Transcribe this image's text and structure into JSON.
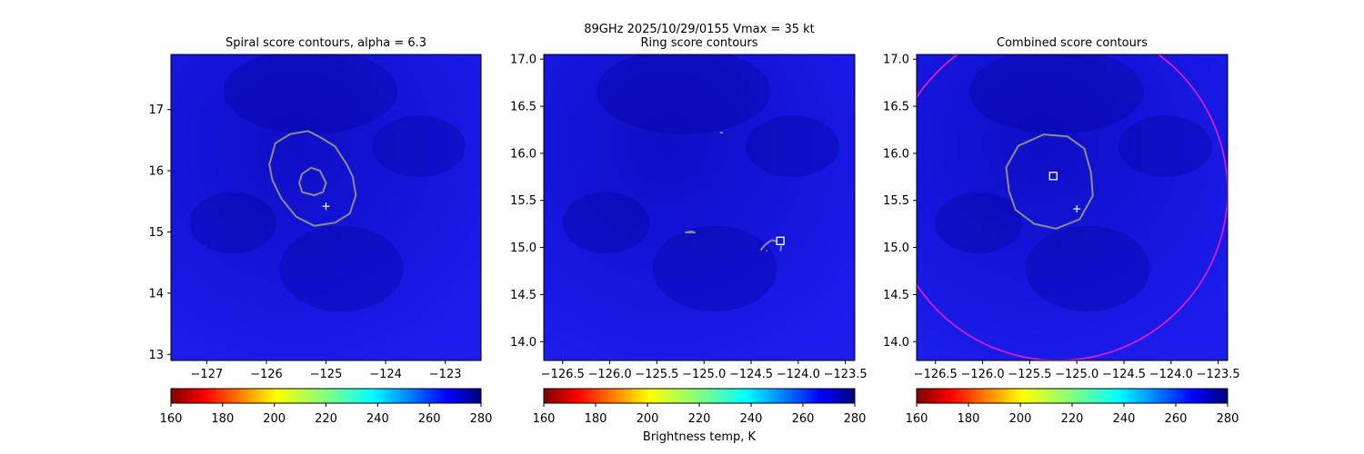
{
  "suptitle_line1": "89GHz  2025/10/29/0155    Vmax = 35 kt",
  "colorbar_label": "Brightness temp, K",
  "colormap": "jet_r",
  "colorbar": {
    "range": [
      160,
      280
    ],
    "ticks": [
      "160",
      "180",
      "200",
      "220",
      "240",
      "260",
      "280"
    ]
  },
  "colors": {
    "contour": "#8c8c8c",
    "circle": "#d21ed2",
    "marker": "#ffffff",
    "field": "#1a1ae8"
  },
  "chart_data": [
    {
      "type": "heatmap",
      "title": "Spiral score contours, alpha =  6.3",
      "xlim": [
        -127.6,
        -122.4
      ],
      "ylim": [
        12.9,
        17.9
      ],
      "xticks": [
        -127,
        -126,
        -125,
        -124,
        -123
      ],
      "xtick_labels": [
        "−127",
        "−126",
        "−125",
        "−124",
        "−123"
      ],
      "yticks": [
        13,
        14,
        15,
        16,
        17
      ],
      "ytick_labels": [
        "13",
        "14",
        "15",
        "16",
        "17"
      ],
      "contours": [
        [
          [
            -125.9,
            15.85
          ],
          [
            -125.95,
            16.1
          ],
          [
            -125.85,
            16.45
          ],
          [
            -125.6,
            16.6
          ],
          [
            -125.3,
            16.65
          ],
          [
            -125.1,
            16.55
          ],
          [
            -124.85,
            16.4
          ],
          [
            -124.65,
            16.1
          ],
          [
            -124.55,
            15.9
          ],
          [
            -124.5,
            15.6
          ],
          [
            -124.6,
            15.3
          ],
          [
            -124.85,
            15.15
          ],
          [
            -125.2,
            15.1
          ],
          [
            -125.5,
            15.25
          ],
          [
            -125.75,
            15.55
          ],
          [
            -125.9,
            15.85
          ]
        ],
        [
          [
            -125.45,
            15.8
          ],
          [
            -125.4,
            15.95
          ],
          [
            -125.25,
            16.05
          ],
          [
            -125.1,
            16.0
          ],
          [
            -125.0,
            15.8
          ],
          [
            -125.05,
            15.65
          ],
          [
            -125.2,
            15.6
          ],
          [
            -125.4,
            15.65
          ],
          [
            -125.45,
            15.8
          ]
        ]
      ],
      "plus_marker": [
        -125.0,
        15.42
      ],
      "colorbar": true
    },
    {
      "type": "heatmap",
      "title": "Ring score contours",
      "xlim": [
        -126.7,
        -123.4
      ],
      "ylim": [
        13.8,
        17.05
      ],
      "xticks": [
        -126.5,
        -126.0,
        -125.5,
        -125.0,
        -124.5,
        -124.0,
        -123.5
      ],
      "xtick_labels": [
        "−126.5",
        "−126.0",
        "−125.5",
        "−125.0",
        "−124.5",
        "−124.0",
        "−123.5"
      ],
      "yticks": [
        14.0,
        14.5,
        15.0,
        15.5,
        16.0,
        16.5,
        17.0
      ],
      "ytick_labels": [
        "14.0",
        "14.5",
        "15.0",
        "15.5",
        "16.0",
        "16.5",
        "17.0"
      ],
      "contours": [
        [
          [
            -124.4,
            14.97
          ],
          [
            -124.35,
            15.03
          ],
          [
            -124.28,
            15.08
          ],
          [
            -124.22,
            15.06
          ]
        ],
        [
          [
            -125.2,
            15.16
          ],
          [
            -125.13,
            15.17
          ],
          [
            -125.1,
            15.16
          ],
          [
            -125.2,
            15.16
          ]
        ],
        [
          [
            -124.83,
            16.22
          ],
          [
            -124.8,
            16.22
          ]
        ],
        [
          [
            -124.18,
            15.02
          ],
          [
            -124.19,
            14.96
          ]
        ],
        [
          [
            -124.34,
            14.97
          ],
          [
            -124.33,
            14.96
          ]
        ]
      ],
      "square_marker": [
        -124.19,
        15.07
      ],
      "colorbar": true
    },
    {
      "type": "heatmap",
      "title": "Combined score contours",
      "xlim": [
        -126.7,
        -123.4
      ],
      "ylim": [
        13.8,
        17.05
      ],
      "xticks": [
        -126.5,
        -126.0,
        -125.5,
        -125.0,
        -124.5,
        -124.0,
        -123.5
      ],
      "xtick_labels": [
        "−126.5",
        "−126.0",
        "−125.5",
        "−125.0",
        "−124.5",
        "−124.0",
        "−123.5"
      ],
      "yticks": [
        14.0,
        14.5,
        15.0,
        15.5,
        16.0,
        16.5,
        17.0
      ],
      "ytick_labels": [
        "14.0",
        "14.5",
        "15.0",
        "15.5",
        "16.0",
        "16.5",
        "17.0"
      ],
      "contours": [
        [
          [
            -125.72,
            15.6
          ],
          [
            -125.75,
            15.85
          ],
          [
            -125.62,
            16.08
          ],
          [
            -125.35,
            16.2
          ],
          [
            -125.1,
            16.18
          ],
          [
            -124.92,
            16.05
          ],
          [
            -124.85,
            15.8
          ],
          [
            -124.83,
            15.55
          ],
          [
            -124.97,
            15.3
          ],
          [
            -125.22,
            15.2
          ],
          [
            -125.45,
            15.25
          ],
          [
            -125.65,
            15.4
          ],
          [
            -125.72,
            15.6
          ]
        ]
      ],
      "square_marker": [
        -125.25,
        15.76
      ],
      "plus_marker": [
        -125.0,
        15.41
      ],
      "circle": {
        "center": [
          -125.2,
          15.6
        ],
        "radius_deg": 1.8
      },
      "colorbar": true
    }
  ]
}
